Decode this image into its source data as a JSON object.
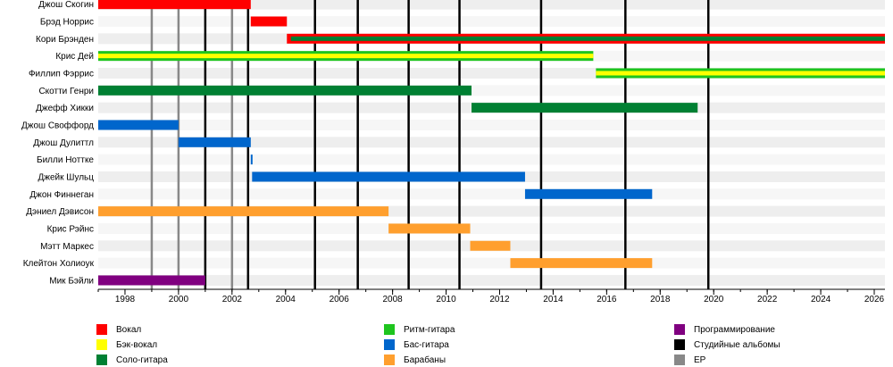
{
  "chart_data": {
    "type": "timeline",
    "members": [
      "Джош Скогин",
      "Брэд Норрис",
      "Кори Брэнден",
      "Крис Дей",
      "Филлип Фэррис",
      "Скотти Генри",
      "Джефф Хикки",
      "Джош Своффорд",
      "Джош Дулиттл",
      "Билли Ноттке",
      "Джейк Шульц",
      "Джон Финнеган",
      "Дэниел Дэвисон",
      "Крис Рэйнс",
      "Мэтт Маркес",
      "Клейтон Холиоук",
      "Мик Бэйли"
    ],
    "bars": [
      {
        "member": "Джош Скогин",
        "role": "vocals",
        "start": 1997.0,
        "end": 2002.7
      },
      {
        "member": "Брэд Норрис",
        "role": "vocals",
        "start": 2002.7,
        "end": 2004.05
      },
      {
        "member": "Кори Брэнден",
        "role": "vocals",
        "start": 2004.05,
        "end": 2026.4
      },
      {
        "member": "Кори Брэнден",
        "role": "lead_guitar",
        "start": 2004.2,
        "end": 2026.4,
        "inner": true
      },
      {
        "member": "Крис Дей",
        "role": "rhythm_guitar",
        "start": 1997.0,
        "end": 2015.5
      },
      {
        "member": "Крис Дей",
        "role": "backing_vocals",
        "start": 1997.0,
        "end": 2015.5,
        "inner": true
      },
      {
        "member": "Филлип Фэррис",
        "role": "rhythm_guitar",
        "start": 2015.6,
        "end": 2026.4
      },
      {
        "member": "Филлип Фэррис",
        "role": "backing_vocals",
        "start": 2015.6,
        "end": 2026.4,
        "inner": true
      },
      {
        "member": "Скотти Генри",
        "role": "lead_guitar",
        "start": 1997.0,
        "end": 2010.95
      },
      {
        "member": "Джефф Хикки",
        "role": "lead_guitar",
        "start": 2010.95,
        "end": 2019.4
      },
      {
        "member": "Джош Своффорд",
        "role": "bass",
        "start": 1997.0,
        "end": 2000.0
      },
      {
        "member": "Джош Дулиттл",
        "role": "bass",
        "start": 2000.0,
        "end": 2002.7
      },
      {
        "member": "Билли Ноттке",
        "role": "bass",
        "start": 2002.7,
        "end": 2002.75
      },
      {
        "member": "Джейк Шульц",
        "role": "bass",
        "start": 2002.75,
        "end": 2012.95
      },
      {
        "member": "Джон Финнеган",
        "role": "bass",
        "start": 2012.95,
        "end": 2017.7
      },
      {
        "member": "Дэниел Дэвисон",
        "role": "drums",
        "start": 1997.0,
        "end": 2007.85
      },
      {
        "member": "Крис Рэйнс",
        "role": "drums",
        "start": 2007.85,
        "end": 2010.9
      },
      {
        "member": "Мэтт Маркес",
        "role": "drums",
        "start": 2010.9,
        "end": 2012.4
      },
      {
        "member": "Клейтон Холиоук",
        "role": "drums",
        "start": 2012.4,
        "end": 2017.7
      },
      {
        "member": "Мик Бэйли",
        "role": "programming",
        "start": 1997.0,
        "end": 2001.0
      }
    ],
    "studio_albums": [
      2001.0,
      2002.6,
      2005.1,
      2006.7,
      2008.6,
      2010.5,
      2013.55,
      2016.7,
      2019.8
    ],
    "eps": [
      1999.0,
      2000.0,
      2002.0
    ],
    "xlim": [
      1997.0,
      2026.4
    ],
    "x_ticks": [
      1998,
      2000,
      2002,
      2004,
      2006,
      2008,
      2010,
      2012,
      2014,
      2016,
      2018,
      2020,
      2022,
      2024,
      2026
    ],
    "legend": [
      {
        "role": "vocals",
        "label": "Вокал",
        "color": "#ff0000"
      },
      {
        "role": "backing_vocals",
        "label": "Бэк-вокал",
        "color": "#ffff00"
      },
      {
        "role": "lead_guitar",
        "label": "Соло-гитара",
        "color": "#008033"
      },
      {
        "role": "rhythm_guitar",
        "label": "Ритм-гитара",
        "color": "#1ec51e"
      },
      {
        "role": "bass",
        "label": "Бас-гитара",
        "color": "#0066cc"
      },
      {
        "role": "drums",
        "label": "Барабаны",
        "color": "#ff9f2e"
      },
      {
        "role": "programming",
        "label": "Программирование",
        "color": "#800080"
      },
      {
        "role": "studio_albums",
        "label": "Студийные альбомы",
        "color": "#000000"
      },
      {
        "role": "eps",
        "label": "EP",
        "color": "#888888"
      }
    ]
  }
}
